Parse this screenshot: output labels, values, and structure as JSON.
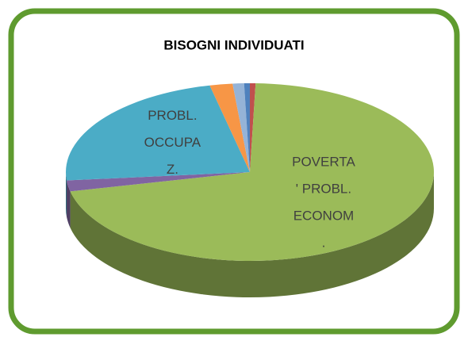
{
  "chart_data": {
    "type": "pie",
    "title": "BISOGNI INDIVIDUATI",
    "categories": [
      null,
      "POVERTA' PROBL. ECONOM.",
      null,
      "PROBL. OCCUPAZ.",
      null,
      null,
      null
    ],
    "values": [
      0.5,
      71,
      2,
      23,
      2,
      1,
      0.5
    ],
    "colors": [
      "#c0504d",
      "#9bbb59",
      "#8064a2",
      "#4bacc6",
      "#f79646",
      "#95b3d7",
      "#4f81bd"
    ]
  }
}
